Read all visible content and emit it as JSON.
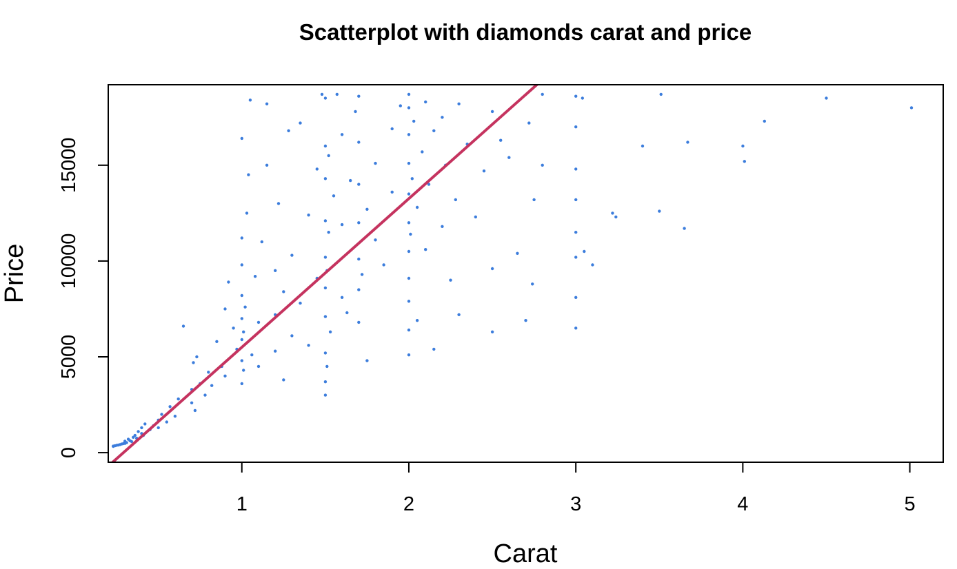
{
  "chart_data": {
    "type": "scatter",
    "title": "Scatterplot with diamonds carat and price",
    "xlabel": "Carat",
    "ylabel": "Price",
    "xlim": [
      0.2,
      5.2
    ],
    "ylim": [
      -500,
      19200
    ],
    "x_ticks": [
      1,
      2,
      3,
      4,
      5
    ],
    "y_ticks": [
      0,
      5000,
      10000,
      15000
    ],
    "grid": false,
    "legend": "none",
    "point_color": "#3c7ddc",
    "line_color": "#c5335f",
    "fit_line": {
      "label": "",
      "intercept": -2256,
      "slope": 7756
    },
    "points": [
      [
        0.23,
        326
      ],
      [
        0.23,
        340
      ],
      [
        0.24,
        360
      ],
      [
        0.25,
        380
      ],
      [
        0.26,
        395
      ],
      [
        0.27,
        420
      ],
      [
        0.28,
        450
      ],
      [
        0.29,
        470
      ],
      [
        0.3,
        480
      ],
      [
        0.3,
        600
      ],
      [
        0.31,
        520
      ],
      [
        0.32,
        700
      ],
      [
        0.33,
        620
      ],
      [
        0.34,
        580
      ],
      [
        0.35,
        800
      ],
      [
        0.36,
        900
      ],
      [
        0.37,
        750
      ],
      [
        0.38,
        1100
      ],
      [
        0.4,
        1000
      ],
      [
        0.4,
        1300
      ],
      [
        0.41,
        900
      ],
      [
        0.42,
        1500
      ],
      [
        0.45,
        1200
      ],
      [
        0.47,
        1400
      ],
      [
        0.5,
        1700
      ],
      [
        0.5,
        1300
      ],
      [
        0.52,
        2000
      ],
      [
        0.55,
        1600
      ],
      [
        0.57,
        2400
      ],
      [
        0.6,
        1900
      ],
      [
        0.62,
        2800
      ],
      [
        0.65,
        6600
      ],
      [
        0.7,
        2600
      ],
      [
        0.7,
        3300
      ],
      [
        0.71,
        4700
      ],
      [
        0.72,
        2200
      ],
      [
        0.73,
        5000
      ],
      [
        0.75,
        3600
      ],
      [
        0.78,
        3000
      ],
      [
        0.8,
        4200
      ],
      [
        0.82,
        3500
      ],
      [
        0.85,
        5800
      ],
      [
        0.88,
        4500
      ],
      [
        0.9,
        4000
      ],
      [
        0.9,
        7500
      ],
      [
        0.92,
        8900
      ],
      [
        0.95,
        6500
      ],
      [
        0.97,
        5400
      ],
      [
        1.0,
        3600
      ],
      [
        1.0,
        4800
      ],
      [
        1.0,
        5900
      ],
      [
        1.0,
        7000
      ],
      [
        1.0,
        8200
      ],
      [
        1.0,
        9800
      ],
      [
        1.0,
        11200
      ],
      [
        1.0,
        16400
      ],
      [
        1.01,
        4300
      ],
      [
        1.01,
        6300
      ],
      [
        1.02,
        7600
      ],
      [
        1.03,
        12500
      ],
      [
        1.04,
        14500
      ],
      [
        1.05,
        18400
      ],
      [
        1.06,
        5100
      ],
      [
        1.08,
        9200
      ],
      [
        1.1,
        4500
      ],
      [
        1.1,
        6800
      ],
      [
        1.12,
        11000
      ],
      [
        1.15,
        18200
      ],
      [
        1.15,
        15000
      ],
      [
        1.2,
        5300
      ],
      [
        1.2,
        7200
      ],
      [
        1.2,
        9500
      ],
      [
        1.22,
        13000
      ],
      [
        1.25,
        3800
      ],
      [
        1.25,
        8400
      ],
      [
        1.28,
        16800
      ],
      [
        1.3,
        10300
      ],
      [
        1.3,
        6100
      ],
      [
        1.35,
        17200
      ],
      [
        1.35,
        7800
      ],
      [
        1.4,
        12400
      ],
      [
        1.4,
        5600
      ],
      [
        1.45,
        14800
      ],
      [
        1.45,
        9100
      ],
      [
        1.48,
        18700
      ],
      [
        1.5,
        3000
      ],
      [
        1.5,
        3700
      ],
      [
        1.5,
        5200
      ],
      [
        1.5,
        7100
      ],
      [
        1.5,
        8600
      ],
      [
        1.5,
        10200
      ],
      [
        1.5,
        12100
      ],
      [
        1.5,
        14300
      ],
      [
        1.5,
        16000
      ],
      [
        1.5,
        18500
      ],
      [
        1.51,
        4500
      ],
      [
        1.51,
        9500
      ],
      [
        1.52,
        11500
      ],
      [
        1.52,
        15500
      ],
      [
        1.53,
        6300
      ],
      [
        1.55,
        13400
      ],
      [
        1.57,
        18700
      ],
      [
        1.6,
        8100
      ],
      [
        1.6,
        11900
      ],
      [
        1.6,
        16600
      ],
      [
        1.63,
        7300
      ],
      [
        1.65,
        14200
      ],
      [
        1.68,
        17800
      ],
      [
        1.7,
        6800
      ],
      [
        1.7,
        8500
      ],
      [
        1.7,
        10100
      ],
      [
        1.7,
        12000
      ],
      [
        1.7,
        14000
      ],
      [
        1.7,
        16200
      ],
      [
        1.7,
        18600
      ],
      [
        1.72,
        9300
      ],
      [
        1.75,
        12700
      ],
      [
        1.75,
        4800
      ],
      [
        1.8,
        11100
      ],
      [
        1.8,
        15100
      ],
      [
        1.85,
        9800
      ],
      [
        1.9,
        13600
      ],
      [
        1.9,
        16900
      ],
      [
        1.95,
        18100
      ],
      [
        2.0,
        5100
      ],
      [
        2.0,
        6400
      ],
      [
        2.0,
        7900
      ],
      [
        2.0,
        9100
      ],
      [
        2.0,
        10500
      ],
      [
        2.0,
        12000
      ],
      [
        2.0,
        13500
      ],
      [
        2.0,
        15100
      ],
      [
        2.0,
        16600
      ],
      [
        2.0,
        18000
      ],
      [
        2.0,
        18700
      ],
      [
        2.01,
        11400
      ],
      [
        2.02,
        14300
      ],
      [
        2.03,
        17300
      ],
      [
        2.05,
        12800
      ],
      [
        2.05,
        6900
      ],
      [
        2.08,
        15700
      ],
      [
        2.1,
        10600
      ],
      [
        2.1,
        18300
      ],
      [
        2.12,
        14000
      ],
      [
        2.15,
        16800
      ],
      [
        2.15,
        5400
      ],
      [
        2.2,
        11800
      ],
      [
        2.2,
        17500
      ],
      [
        2.22,
        15000
      ],
      [
        2.25,
        9000
      ],
      [
        2.28,
        13200
      ],
      [
        2.3,
        18200
      ],
      [
        2.3,
        7200
      ],
      [
        2.35,
        16100
      ],
      [
        2.4,
        12300
      ],
      [
        2.45,
        14700
      ],
      [
        2.5,
        6300
      ],
      [
        2.5,
        17800
      ],
      [
        2.5,
        9600
      ],
      [
        2.55,
        16300
      ],
      [
        2.6,
        15400
      ],
      [
        2.65,
        10400
      ],
      [
        2.7,
        6900
      ],
      [
        2.72,
        17200
      ],
      [
        2.74,
        8800
      ],
      [
        2.75,
        13200
      ],
      [
        2.8,
        15000
      ],
      [
        2.8,
        18700
      ],
      [
        3.0,
        6500
      ],
      [
        3.0,
        8100
      ],
      [
        3.0,
        10200
      ],
      [
        3.0,
        11500
      ],
      [
        3.0,
        13200
      ],
      [
        3.0,
        14800
      ],
      [
        3.0,
        17000
      ],
      [
        3.0,
        18600
      ],
      [
        3.04,
        18500
      ],
      [
        3.05,
        10500
      ],
      [
        3.1,
        9800
      ],
      [
        3.22,
        12500
      ],
      [
        3.24,
        12300
      ],
      [
        3.4,
        16000
      ],
      [
        3.5,
        12600
      ],
      [
        3.51,
        18700
      ],
      [
        3.65,
        11700
      ],
      [
        3.67,
        16200
      ],
      [
        4.0,
        16000
      ],
      [
        4.01,
        15200
      ],
      [
        4.13,
        17300
      ],
      [
        4.5,
        18500
      ],
      [
        5.01,
        18000
      ]
    ]
  }
}
